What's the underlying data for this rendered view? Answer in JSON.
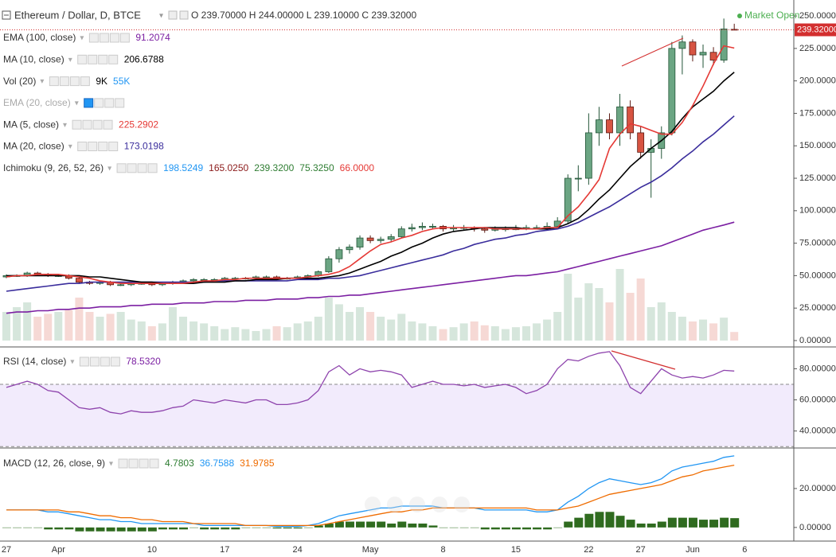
{
  "header": {
    "symbol": "Ethereum / Dollar, D, BTCE",
    "ohlc": "O 239.70000 H 244.00000 L 239.10000 C 239.32000",
    "status": "Market Open"
  },
  "legend": [
    {
      "name": "EMA (100, close)",
      "values": [
        "91.2074"
      ],
      "colors": [
        "#7b1fa2"
      ]
    },
    {
      "name": "MA (10, close)",
      "values": [
        "206.6788"
      ],
      "colors": [
        "#000000"
      ]
    },
    {
      "name": "Vol (20)",
      "values": [
        "9K",
        "55K"
      ],
      "colors": [
        "#000000",
        "#2196f3"
      ]
    },
    {
      "name": "EMA (20, close)",
      "values": [],
      "colors": []
    },
    {
      "name": "MA (5, close)",
      "values": [
        "225.2902"
      ],
      "colors": [
        "#e53935"
      ]
    },
    {
      "name": "MA (20, close)",
      "values": [
        "173.0198"
      ],
      "colors": [
        "#3a2d9c"
      ]
    },
    {
      "name": "Ichimoku (9, 26, 52, 26)",
      "values": [
        "198.5249",
        "165.0250",
        "239.3200",
        "75.3250",
        "66.0000"
      ],
      "colors": [
        "#2196f3",
        "#8b1a1a",
        "#2e7d32",
        "#2e7d32",
        "#e53935"
      ]
    }
  ],
  "chart_data": [
    {
      "type": "candlestick",
      "categories": [
        "27",
        null,
        null,
        null,
        null,
        "Apr",
        null,
        null,
        null,
        null,
        null,
        null,
        null,
        null,
        "10",
        null,
        null,
        null,
        null,
        null,
        null,
        "17",
        null,
        null,
        null,
        null,
        null,
        null,
        "24",
        null,
        null,
        null,
        null,
        null,
        null,
        "May",
        null,
        null,
        null,
        null,
        null,
        null,
        "8",
        null,
        null,
        null,
        null,
        null,
        null,
        "15",
        null,
        null,
        null,
        null,
        null,
        null,
        "22",
        null,
        null,
        null,
        null,
        "27",
        null,
        null,
        null,
        null,
        "Jun",
        null,
        null,
        null,
        null,
        "6"
      ],
      "open": [
        49,
        50,
        50,
        52,
        51,
        50,
        50,
        48,
        45,
        44,
        45,
        43,
        43,
        44,
        44,
        43,
        44,
        45,
        46,
        47,
        47,
        47,
        48,
        48,
        48,
        49,
        49,
        48,
        48,
        49,
        50,
        53,
        63,
        70,
        72,
        79,
        77,
        78,
        80,
        86,
        87,
        88,
        88,
        86,
        87,
        87,
        86,
        85,
        86,
        86,
        86,
        87,
        87,
        88,
        92,
        125,
        125,
        160,
        170,
        160,
        180,
        160,
        145,
        148,
        160,
        225,
        230,
        220,
        222,
        216,
        239.7,
        null
      ],
      "high": [
        51,
        51,
        53,
        53,
        52,
        51,
        51,
        49,
        46,
        46,
        46,
        44,
        45,
        45,
        45,
        45,
        46,
        47,
        48,
        48,
        48,
        49,
        49,
        49,
        50,
        50,
        50,
        49,
        50,
        51,
        54,
        65,
        72,
        74,
        81,
        81,
        80,
        82,
        88,
        90,
        91,
        90,
        89,
        89,
        89,
        88,
        87,
        88,
        88,
        89,
        89,
        89,
        91,
        95,
        128,
        135,
        175,
        180,
        175,
        190,
        185,
        165,
        155,
        165,
        230,
        235,
        232,
        228,
        226,
        248,
        244,
        null
      ],
      "low": [
        48,
        49,
        49,
        50,
        49,
        49,
        47,
        44,
        43,
        43,
        42,
        42,
        42,
        43,
        42,
        42,
        43,
        44,
        45,
        46,
        46,
        46,
        47,
        47,
        47,
        48,
        47,
        47,
        47,
        48,
        49,
        52,
        60,
        67,
        70,
        75,
        75,
        76,
        79,
        84,
        85,
        86,
        84,
        84,
        85,
        84,
        83,
        84,
        84,
        85,
        85,
        86,
        86,
        87,
        90,
        115,
        120,
        150,
        155,
        150,
        155,
        140,
        110,
        140,
        158,
        205,
        215,
        210,
        212,
        214,
        239.1,
        null
      ],
      "close": [
        50,
        50,
        52,
        51,
        50,
        50,
        48,
        45,
        44,
        45,
        43,
        43,
        44,
        44,
        43,
        44,
        45,
        46,
        47,
        47,
        47,
        48,
        48,
        48,
        49,
        49,
        48,
        48,
        49,
        50,
        53,
        63,
        70,
        72,
        79,
        77,
        78,
        80,
        86,
        87,
        88,
        88,
        86,
        87,
        87,
        86,
        85,
        86,
        86,
        86,
        87,
        87,
        88,
        92,
        125,
        125,
        160,
        170,
        160,
        180,
        160,
        145,
        148,
        160,
        225,
        230,
        220,
        222,
        216,
        240,
        239.32,
        null
      ],
      "up_color": "#6ba583",
      "down_color": "#d75442",
      "last_price_label": "239.32000",
      "last_price_color": "#d32f2f",
      "series": [
        {
          "color": "#7b1fa2",
          "values": [
            21,
            22,
            22,
            23,
            23,
            24,
            24,
            25,
            25,
            26,
            26,
            26,
            27,
            27,
            28,
            28,
            28,
            29,
            29,
            29,
            30,
            30,
            30,
            31,
            31,
            31,
            32,
            32,
            32,
            33,
            33,
            34,
            34,
            35,
            35,
            36,
            37,
            38,
            39,
            40,
            41,
            42,
            43,
            44,
            45,
            46,
            47,
            48,
            49,
            50,
            50,
            51,
            52,
            53,
            55,
            57,
            59,
            61,
            63,
            65,
            67,
            69,
            71,
            73,
            76,
            79,
            82,
            85,
            87,
            89,
            91.21,
            null
          ]
        },
        {
          "color": "#3a2d9c",
          "values": [
            38,
            39,
            40,
            41,
            42,
            43,
            44,
            44,
            45,
            45,
            45,
            45,
            45,
            45,
            45,
            45,
            45,
            45,
            45,
            45,
            46,
            46,
            46,
            46,
            46,
            46,
            46,
            46,
            47,
            47,
            47,
            48,
            48,
            49,
            50,
            52,
            54,
            56,
            58,
            60,
            62,
            64,
            66,
            69,
            71,
            74,
            76,
            78,
            79,
            81,
            82,
            84,
            85,
            86,
            88,
            91,
            95,
            99,
            103,
            108,
            113,
            118,
            122,
            127,
            133,
            140,
            146,
            153,
            159,
            166,
            173.02,
            null
          ]
        },
        {
          "color": "#000000",
          "values": [
            50,
            50,
            50,
            50,
            50,
            50,
            50,
            50,
            49,
            49,
            48,
            47,
            46,
            45,
            45,
            44,
            44,
            44,
            44,
            45,
            45,
            45,
            46,
            46,
            47,
            47,
            47,
            48,
            48,
            48,
            48,
            49,
            50,
            52,
            55,
            58,
            61,
            65,
            68,
            72,
            75,
            79,
            82,
            84,
            85,
            86,
            87,
            87,
            87,
            87,
            86,
            86,
            86,
            87,
            90,
            94,
            101,
            109,
            116,
            125,
            134,
            141,
            148,
            154,
            161,
            171,
            180,
            186,
            192,
            200,
            206.68,
            null
          ]
        },
        {
          "color": "#e53935",
          "values": [
            49,
            50,
            50,
            51,
            51,
            51,
            50,
            49,
            48,
            46,
            45,
            44,
            44,
            44,
            44,
            44,
            44,
            44,
            45,
            46,
            46,
            47,
            47,
            48,
            48,
            48,
            48,
            48,
            48,
            49,
            50,
            51,
            53,
            57,
            63,
            69,
            74,
            76,
            79,
            81,
            84,
            86,
            87,
            87,
            87,
            87,
            87,
            86,
            86,
            86,
            86,
            86,
            87,
            87,
            96,
            103,
            113,
            124,
            148,
            159,
            167,
            165,
            162,
            159,
            159,
            168,
            181,
            196,
            213,
            227,
            225.29,
            null
          ]
        }
      ],
      "ylim": [
        -4.3,
        262.3
      ],
      "yticks": [
        {
          "value": 0,
          "label": "0.00000"
        },
        {
          "value": 25,
          "label": "25.00000"
        },
        {
          "value": 50,
          "label": "50.00000"
        },
        {
          "value": 75,
          "label": "75.00000"
        },
        {
          "value": 100,
          "label": "100.00000"
        },
        {
          "value": 125,
          "label": "125.00000"
        },
        {
          "value": 150,
          "label": "150.00000"
        },
        {
          "value": 175,
          "label": "175.00000"
        },
        {
          "value": 200,
          "label": "200.00000"
        },
        {
          "value": 225,
          "label": "225.00000"
        },
        {
          "value": 250,
          "label": "250.00000"
        }
      ]
    },
    {
      "type": "bar",
      "up_color": "rgba(107,165,131,0.28)",
      "down_color": "rgba(215,84,66,0.22)",
      "values": [
        30,
        35,
        40,
        25,
        28,
        30,
        32,
        45,
        30,
        25,
        28,
        30,
        22,
        20,
        15,
        18,
        35,
        25,
        20,
        18,
        15,
        12,
        14,
        12,
        10,
        12,
        15,
        14,
        18,
        20,
        25,
        45,
        38,
        30,
        35,
        30,
        25,
        22,
        28,
        20,
        18,
        15,
        12,
        14,
        18,
        20,
        16,
        15,
        12,
        14,
        15,
        18,
        22,
        30,
        70,
        45,
        60,
        55,
        40,
        75,
        50,
        65,
        35,
        40,
        30,
        25,
        20,
        22,
        18,
        24,
        9,
        null
      ]
    },
    {
      "type": "line",
      "label": "RSI (14, close)",
      "value_text": "78.5320",
      "value_color": "#7b1fa2",
      "series": [
        {
          "color": "#8e44ad",
          "values": [
            68,
            70,
            72,
            70,
            66,
            65,
            60,
            55,
            54,
            55,
            52,
            51,
            53,
            52,
            52,
            53,
            55,
            56,
            60,
            59,
            58,
            60,
            59,
            58,
            60,
            60,
            57,
            57,
            58,
            60,
            66,
            78,
            82,
            76,
            80,
            78,
            79,
            78,
            76,
            68,
            70,
            72,
            70,
            70,
            69,
            70,
            68,
            69,
            70,
            68,
            64,
            66,
            70,
            80,
            86,
            85,
            88,
            90,
            91,
            82,
            68,
            64,
            72,
            80,
            76,
            74,
            75,
            74,
            76,
            79,
            78.53,
            null
          ]
        }
      ],
      "band": [
        30,
        70
      ],
      "band_color": "rgba(155,100,230,0.13)",
      "ylim": [
        29.6,
        93.5
      ],
      "yticks": [
        {
          "value": 40,
          "label": "40.00000"
        },
        {
          "value": 60,
          "label": "60.00000"
        },
        {
          "value": 80,
          "label": "80.00000"
        }
      ]
    },
    {
      "type": "macd",
      "label": "MACD (12, 26, close, 9)",
      "value_texts": [
        "4.7803",
        "36.7588",
        "31.9785"
      ],
      "value_colors": [
        "#2e7d32",
        "#2196f3",
        "#ef6c00"
      ],
      "histogram": {
        "color": "#2f6b1f",
        "values": [
          0,
          0,
          0,
          0,
          -1,
          -1,
          -1,
          -2,
          -2,
          -2,
          -2,
          -2,
          -2,
          -2,
          -2,
          -1,
          -1,
          -1,
          0,
          -1,
          -1,
          -1,
          -1,
          0,
          0,
          0,
          -0.5,
          -0.5,
          -0.5,
          0,
          1,
          2,
          3,
          3,
          3,
          3,
          3,
          2,
          3,
          2,
          2,
          1,
          0,
          0,
          0,
          0,
          -1,
          -1,
          -1,
          -1,
          -1,
          -1,
          -1,
          0,
          3,
          5,
          7,
          8,
          8,
          6,
          4,
          2,
          2,
          3,
          5,
          5,
          5,
          4,
          4,
          5,
          4.78,
          null
        ]
      },
      "series": [
        {
          "color": "#2196f3",
          "values": [
            9,
            9,
            9,
            9,
            8,
            8,
            7,
            6,
            5,
            4,
            4,
            3,
            3,
            2,
            2,
            2,
            2,
            2,
            2,
            1,
            1,
            1,
            1,
            1,
            1,
            1,
            0.5,
            0.5,
            0.5,
            1,
            2,
            4,
            6,
            7,
            8,
            9,
            10,
            10,
            11,
            11,
            11,
            11,
            10,
            10,
            10,
            10,
            9,
            9,
            9,
            9,
            9,
            8,
            8,
            9,
            13,
            16,
            20,
            23,
            25,
            24,
            23,
            22,
            23,
            25,
            29,
            31,
            32,
            33,
            34,
            36,
            36.76,
            null
          ]
        },
        {
          "color": "#ef6c00",
          "values": [
            9,
            9,
            9,
            9,
            9,
            9,
            8,
            8,
            7,
            6,
            6,
            5,
            5,
            4,
            4,
            3,
            3,
            3,
            2,
            2,
            2,
            2,
            2,
            1,
            1,
            1,
            1,
            1,
            1,
            1,
            1,
            2,
            3,
            4,
            5,
            6,
            7,
            8,
            8,
            9,
            9,
            10,
            10,
            10,
            10,
            10,
            10,
            10,
            10,
            10,
            10,
            9,
            9,
            9,
            10,
            11,
            13,
            15,
            17,
            18,
            19,
            20,
            21,
            22,
            24,
            26,
            27,
            29,
            30,
            31,
            31.98,
            null
          ]
        }
      ],
      "ylim": [
        -7,
        40
      ],
      "yticks": [
        {
          "value": 0,
          "label": "0.00000"
        },
        {
          "value": 20,
          "label": "20.00000"
        }
      ]
    }
  ]
}
